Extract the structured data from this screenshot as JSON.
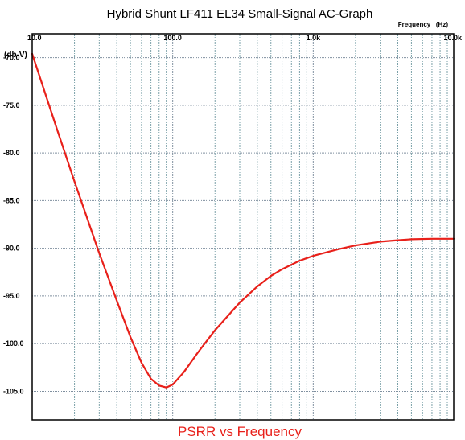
{
  "chart_data": {
    "type": "line",
    "title": "Hybrid Shunt LF411 EL34 Small-Signal AC-Graph",
    "xlabel": "Frequency   (Hz)",
    "ylabel": "(db-V)",
    "caption": "PSRR vs Frequency",
    "x_scale": "log",
    "xlim": [
      10,
      10000
    ],
    "ylim": [
      -108,
      -67.5
    ],
    "x_ticks": [
      {
        "value": 10,
        "label": "10.0"
      },
      {
        "value": 100,
        "label": "100.0"
      },
      {
        "value": 1000,
        "label": "1.0k"
      },
      {
        "value": 10000,
        "label": "10.0k"
      }
    ],
    "y_ticks": [
      {
        "value": -70,
        "label": "-70.0"
      },
      {
        "value": -75,
        "label": "-75.0"
      },
      {
        "value": -80,
        "label": "-80.0"
      },
      {
        "value": -85,
        "label": "-85.0"
      },
      {
        "value": -90,
        "label": "-90.0"
      },
      {
        "value": -95,
        "label": "-95.0"
      },
      {
        "value": -100,
        "label": "-100.0"
      },
      {
        "value": -105,
        "label": "-105.0"
      }
    ],
    "grid": true,
    "legend": "none",
    "series": [
      {
        "color": "#e8201a",
        "points": [
          [
            10,
            -69.6
          ],
          [
            15,
            -77.5
          ],
          [
            20,
            -83.0
          ],
          [
            30,
            -90.5
          ],
          [
            40,
            -95.5
          ],
          [
            50,
            -99.3
          ],
          [
            60,
            -102.0
          ],
          [
            70,
            -103.7
          ],
          [
            80,
            -104.4
          ],
          [
            90,
            -104.6
          ],
          [
            100,
            -104.3
          ],
          [
            120,
            -103.0
          ],
          [
            150,
            -101.0
          ],
          [
            200,
            -98.6
          ],
          [
            250,
            -97.0
          ],
          [
            300,
            -95.7
          ],
          [
            400,
            -94.0
          ],
          [
            500,
            -92.9
          ],
          [
            600,
            -92.2
          ],
          [
            800,
            -91.3
          ],
          [
            1000,
            -90.8
          ],
          [
            1500,
            -90.1
          ],
          [
            2000,
            -89.7
          ],
          [
            3000,
            -89.3
          ],
          [
            4000,
            -89.15
          ],
          [
            5000,
            -89.05
          ],
          [
            7000,
            -89.0
          ],
          [
            10000,
            -89.0
          ]
        ]
      }
    ],
    "colors": {
      "grid_major": "#7f8f9f",
      "grid_minor": "#7aa0a8",
      "frame": "#000000",
      "caption": "#e8201a"
    }
  }
}
